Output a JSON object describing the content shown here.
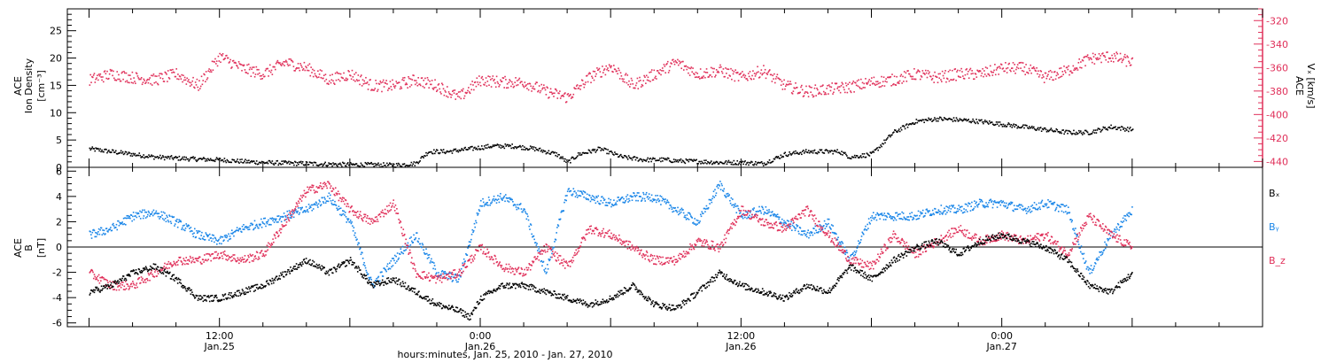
{
  "chart_data": [
    {
      "type": "scatter",
      "panel": "top",
      "ylabel_left_lines": [
        "ACE",
        "Ion Density",
        "[cm⁻³]"
      ],
      "ylabel_right_lines": [
        "ACE",
        "Vₓ [km/s]"
      ],
      "ylim_left": [
        0,
        29
      ],
      "ylim_right": [
        -445,
        -310
      ],
      "yticks_left": [
        0,
        5,
        10,
        15,
        20,
        25
      ],
      "yticks_right": [
        -440,
        -420,
        -400,
        -380,
        -360,
        -340,
        -320
      ],
      "right_axis_color": "#e0305a",
      "series": [
        {
          "color": "#000000",
          "axis": "left",
          "x": [
            4.0,
            5.0,
            6.0,
            7.0,
            8.0,
            9.0,
            10.0,
            11.0,
            12.0,
            13.0,
            14.0,
            15.0,
            16.0,
            17.0,
            18.0,
            19.0,
            19.6,
            20.5,
            21.5,
            22.5,
            23.5,
            24.5,
            25.5,
            26.0,
            26.5,
            27.5,
            28.5,
            29.5,
            30.5,
            31.0,
            32.0,
            33.0,
            34.0,
            35.0,
            36.0,
            37.0,
            38.0,
            38.5,
            39.0,
            40.0,
            41.0,
            42.0,
            43.0,
            44.0,
            45.0,
            46.0,
            47.0,
            48.0,
            49.0,
            50.0,
            51.0,
            52.0
          ],
          "y": [
            3.5,
            3.0,
            2.5,
            2.0,
            1.8,
            1.6,
            1.5,
            1.2,
            1.0,
            0.9,
            0.8,
            0.7,
            0.6,
            0.6,
            0.5,
            0.8,
            3.0,
            3.0,
            3.5,
            4.0,
            4.0,
            3.5,
            2.5,
            1.0,
            2.5,
            3.5,
            2.0,
            1.5,
            1.5,
            1.3,
            1.2,
            1.0,
            1.0,
            0.8,
            2.5,
            3.0,
            3.0,
            3.0,
            2.0,
            2.5,
            6.5,
            8.5,
            9.0,
            8.8,
            8.5,
            8.0,
            7.5,
            7.0,
            6.5,
            6.5,
            7.5,
            7.0
          ]
        },
        {
          "color": "#e0305a",
          "axis": "right",
          "x": [
            4.0,
            5.0,
            6.0,
            7.0,
            8.0,
            9.0,
            10.0,
            11.0,
            12.0,
            13.0,
            14.0,
            15.0,
            16.0,
            17.0,
            18.0,
            19.0,
            20.0,
            21.0,
            22.0,
            23.0,
            24.0,
            25.0,
            26.0,
            27.0,
            28.0,
            29.0,
            30.0,
            31.0,
            32.0,
            33.0,
            34.0,
            35.0,
            36.0,
            37.0,
            38.0,
            39.0,
            40.0,
            41.0,
            42.0,
            43.0,
            44.0,
            45.0,
            46.0,
            47.0,
            48.0,
            49.0,
            50.0,
            51.0,
            52.0
          ],
          "y": [
            -370,
            -365,
            -368,
            -370,
            -365,
            -375,
            -350,
            -360,
            -365,
            -355,
            -360,
            -370,
            -365,
            -375,
            -375,
            -370,
            -375,
            -385,
            -370,
            -372,
            -372,
            -380,
            -385,
            -368,
            -358,
            -375,
            -365,
            -355,
            -365,
            -362,
            -368,
            -362,
            -375,
            -380,
            -378,
            -376,
            -372,
            -370,
            -365,
            -368,
            -365,
            -365,
            -360,
            -360,
            -368,
            -362,
            -352,
            -350,
            -355
          ]
        }
      ]
    },
    {
      "type": "scatter",
      "panel": "bottom",
      "ylabel_left_lines": [
        "ACE",
        "B",
        "[nT]"
      ],
      "ylim": [
        -6.3,
        6.3
      ],
      "yticks": [
        -6,
        -4,
        -2,
        0,
        2,
        4,
        6
      ],
      "xlabel": "hours:minutes, Jan. 25, 2010 - Jan. 27, 2010",
      "xlim": [
        3,
        58
      ],
      "xticks": [
        {
          "x": 10.0,
          "label1": "12:00",
          "label2": "Jan.25"
        },
        {
          "x": 22.0,
          "label1": "0:00",
          "label2": "Jan.26"
        },
        {
          "x": 34.0,
          "label1": "12:00",
          "label2": "Jan.26"
        },
        {
          "x": 46.0,
          "label1": "0:00",
          "label2": "Jan.27"
        }
      ],
      "legend": [
        "Bₓ",
        "Bᵧ",
        "B_z"
      ],
      "series": [
        {
          "name": "Bx",
          "color": "#000000",
          "x": [
            4.0,
            5.0,
            6.0,
            7.0,
            8.0,
            9.0,
            10.0,
            11.0,
            12.0,
            13.0,
            14.0,
            15.0,
            16.0,
            17.0,
            18.0,
            19.0,
            20.0,
            21.0,
            21.5,
            22.0,
            23.0,
            24.0,
            25.0,
            26.0,
            27.0,
            28.0,
            29.0,
            30.0,
            31.0,
            32.0,
            33.0,
            34.0,
            35.0,
            36.0,
            37.0,
            38.0,
            39.0,
            40.0,
            41.0,
            42.0,
            43.0,
            44.0,
            45.0,
            46.0,
            47.0,
            48.0,
            49.0,
            50.0,
            51.0,
            52.0
          ],
          "y": [
            -3.5,
            -3.0,
            -2.0,
            -1.5,
            -2.5,
            -4.0,
            -4.0,
            -3.5,
            -3.0,
            -2.0,
            -1.0,
            -2.0,
            -1.0,
            -3.0,
            -2.5,
            -3.5,
            -4.5,
            -5.0,
            -5.5,
            -4.0,
            -3.0,
            -3.0,
            -3.5,
            -4.0,
            -4.5,
            -4.0,
            -3.0,
            -4.5,
            -4.8,
            -3.5,
            -2.0,
            -3.0,
            -3.5,
            -4.0,
            -3.0,
            -3.5,
            -1.5,
            -2.5,
            -1.0,
            0.0,
            0.5,
            -0.5,
            0.5,
            1.0,
            0.5,
            0.0,
            -1.0,
            -3.0,
            -3.5,
            -2.0
          ]
        },
        {
          "name": "By",
          "color": "#1a86e8",
          "x": [
            4.0,
            5.0,
            6.0,
            7.0,
            8.0,
            9.0,
            10.0,
            11.0,
            12.0,
            13.0,
            14.0,
            15.0,
            16.0,
            17.0,
            18.0,
            19.0,
            20.0,
            21.0,
            22.0,
            23.0,
            24.0,
            25.0,
            26.0,
            27.0,
            28.0,
            29.0,
            30.0,
            31.0,
            32.0,
            33.0,
            34.0,
            35.0,
            36.0,
            37.0,
            38.0,
            39.0,
            40.0,
            41.0,
            42.0,
            43.0,
            44.0,
            45.0,
            46.0,
            47.0,
            48.0,
            49.0,
            50.0,
            51.0,
            52.0
          ],
          "y": [
            1.0,
            1.5,
            2.5,
            2.8,
            2.0,
            1.0,
            0.5,
            1.5,
            2.0,
            2.5,
            3.0,
            4.0,
            2.0,
            -3.0,
            -1.0,
            1.0,
            -2.0,
            -2.5,
            3.5,
            4.0,
            3.0,
            -2.0,
            4.5,
            4.0,
            3.5,
            4.0,
            4.0,
            3.0,
            2.0,
            5.0,
            2.5,
            3.0,
            2.0,
            1.0,
            2.0,
            -1.0,
            2.5,
            2.5,
            2.5,
            3.0,
            3.0,
            3.5,
            3.5,
            3.0,
            3.5,
            3.0,
            -2.0,
            1.0,
            3.0
          ]
        },
        {
          "name": "Bz",
          "color": "#e0305a",
          "x": [
            4.0,
            5.0,
            6.0,
            7.0,
            8.0,
            9.0,
            10.0,
            11.0,
            12.0,
            13.0,
            14.0,
            15.0,
            16.0,
            17.0,
            18.0,
            19.0,
            20.0,
            21.0,
            22.0,
            23.0,
            24.0,
            25.0,
            26.0,
            27.0,
            28.0,
            29.0,
            30.0,
            31.0,
            32.0,
            33.0,
            34.0,
            35.0,
            36.0,
            37.0,
            38.0,
            39.0,
            40.0,
            41.0,
            42.0,
            43.0,
            44.0,
            45.0,
            46.0,
            47.0,
            48.0,
            49.0,
            50.0,
            51.0,
            52.0
          ],
          "y": [
            -2.0,
            -3.0,
            -3.0,
            -2.0,
            -1.0,
            -1.0,
            -0.5,
            -1.0,
            -0.5,
            2.0,
            4.5,
            5.0,
            3.0,
            2.0,
            3.5,
            -2.0,
            -2.5,
            -2.0,
            0.0,
            -1.5,
            -2.0,
            0.0,
            -1.5,
            1.5,
            1.0,
            0.0,
            -1.0,
            -1.0,
            0.5,
            0.0,
            3.0,
            2.0,
            1.5,
            3.0,
            1.0,
            -1.0,
            -1.5,
            1.0,
            -0.5,
            0.5,
            1.5,
            0.5,
            1.0,
            0.5,
            1.0,
            -0.5,
            2.5,
            1.0,
            0.0
          ]
        }
      ]
    }
  ]
}
